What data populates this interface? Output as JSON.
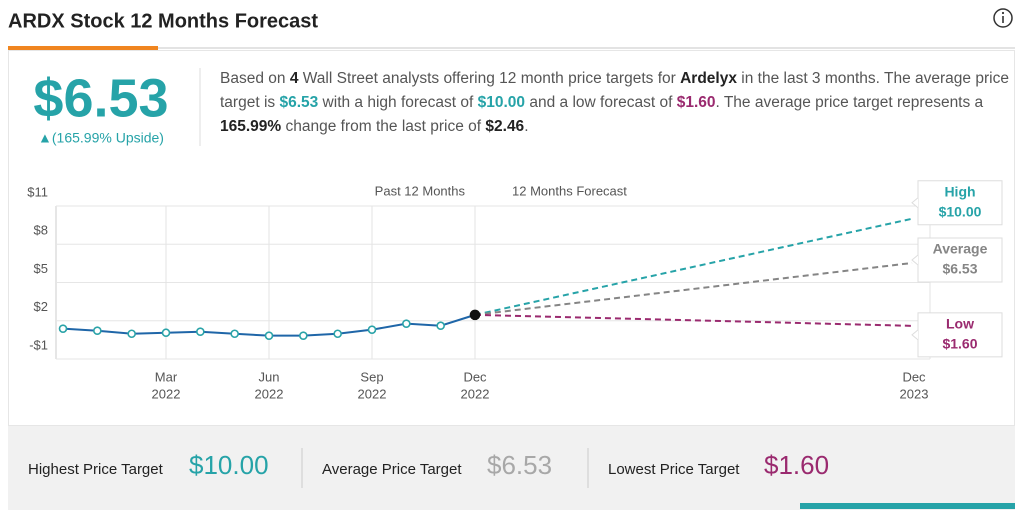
{
  "header": {
    "title": "ARDX Stock 12 Months Forecast"
  },
  "summary": {
    "price": "$6.53",
    "upside": "▲(165.99% Upside)",
    "text": [
      "Based on ",
      "4",
      " Wall Street analysts offering 12 month price targets for ",
      "Ardelyx",
      " in the last 3 months. The average price target is ",
      "$6.53",
      " with a high forecast of ",
      "$10.00",
      " and a low forecast of ",
      "$1.60",
      ". The average price target represents a ",
      "165.99%",
      " change from the last price of ",
      "$2.46",
      "."
    ]
  },
  "chart_data": {
    "type": "line",
    "period_labels": [
      "Past 12 Months",
      "12 Months Forecast"
    ],
    "x": [
      "2021-12",
      "2022-01",
      "2022-02",
      "2022-03",
      "2022-04",
      "2022-05",
      "2022-06",
      "2022-07",
      "2022-08",
      "2022-09",
      "2022-10",
      "2022-11",
      "2022-12"
    ],
    "values": [
      1.38,
      1.22,
      0.98,
      1.06,
      1.14,
      0.98,
      0.83,
      0.83,
      0.98,
      1.3,
      1.77,
      1.61,
      2.46
    ],
    "color": "#1f66a8",
    "marker_color": "#2aa3a8",
    "last_point_color": "#111111",
    "xlim": [
      "2021-12",
      "2023-12"
    ],
    "xticks": [
      {
        "value": "2022-03",
        "label": [
          "Mar",
          "2022"
        ]
      },
      {
        "value": "2022-06",
        "label": [
          "Jun",
          "2022"
        ]
      },
      {
        "value": "2022-09",
        "label": [
          "Sep",
          "2022"
        ]
      },
      {
        "value": "2022-12",
        "label": [
          "Dec",
          "2022"
        ]
      },
      {
        "value": "2023-12",
        "label": [
          "Dec",
          "2023"
        ]
      }
    ],
    "ylim": [
      -1,
      11
    ],
    "yticks": [
      {
        "value": 11,
        "label": "$11"
      },
      {
        "value": 8,
        "label": "$8"
      },
      {
        "value": 5,
        "label": "$5"
      },
      {
        "value": 2,
        "label": "$2"
      },
      {
        "value": -1,
        "label": "-$1"
      }
    ],
    "grid": true,
    "forecast": {
      "x": "2023-12",
      "series": [
        {
          "name": "High",
          "color": "#26a3a8",
          "value": 10.0,
          "value_label": "$10.00"
        },
        {
          "name": "Average",
          "color": "#858585",
          "value": 6.53,
          "value_label": "$6.53"
        },
        {
          "name": "Low",
          "color": "#9a2a6f",
          "value": 1.6,
          "value_label": "$1.60"
        }
      ]
    }
  },
  "footer": {
    "items": [
      {
        "label": "Highest Price Target",
        "value": "$10.00"
      },
      {
        "label": "Average Price Target",
        "value": "$6.53"
      },
      {
        "label": "Lowest Price Target",
        "value": "$1.60"
      }
    ]
  }
}
